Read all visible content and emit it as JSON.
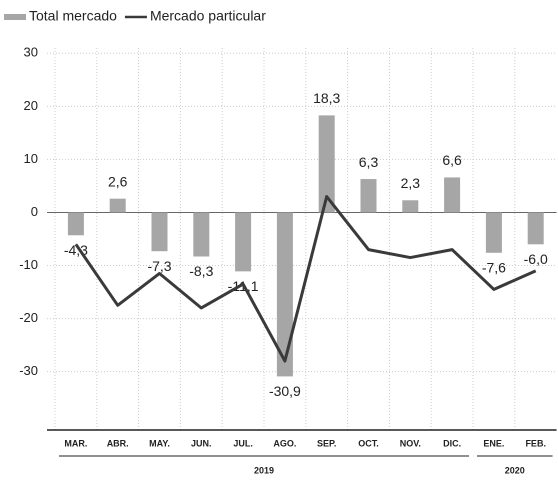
{
  "chart_data": {
    "type": "bar_line",
    "categories": [
      "MAR.",
      "ABR.",
      "MAY.",
      "JUN.",
      "JUL.",
      "AGO.",
      "SEP.",
      "OCT.",
      "NOV.",
      "DIC.",
      "ENE.",
      "FEB."
    ],
    "x_groups": [
      {
        "label": "2019",
        "size": 10
      },
      {
        "label": "2020",
        "size": 2
      }
    ],
    "series": [
      {
        "name": "Total mercado",
        "color": "#a6a6a6",
        "kind": "bar",
        "values": [
          -4.3,
          2.6,
          -7.3,
          -8.3,
          -11.1,
          -30.9,
          18.3,
          6.3,
          2.3,
          6.6,
          -7.6,
          -6.0
        ],
        "value_labels": [
          "-4,3",
          "2,6",
          "-7,3",
          "-8,3",
          "-11,1",
          "-30,9",
          "18,3",
          "6,3",
          "2,3",
          "6,6",
          "-7,6",
          "-6,0"
        ]
      },
      {
        "name": "Mercado particular",
        "color": "#3a3a3a",
        "kind": "line",
        "values": [
          -6,
          -17.5,
          -11.5,
          -18,
          -13.5,
          -28,
          3,
          -7,
          -8.5,
          -7,
          -14.5,
          -11
        ]
      }
    ],
    "ylim": [
      -41,
      31
    ],
    "yticks": [
      30,
      20,
      10,
      0,
      -10,
      -20,
      -30
    ],
    "grid": true
  }
}
